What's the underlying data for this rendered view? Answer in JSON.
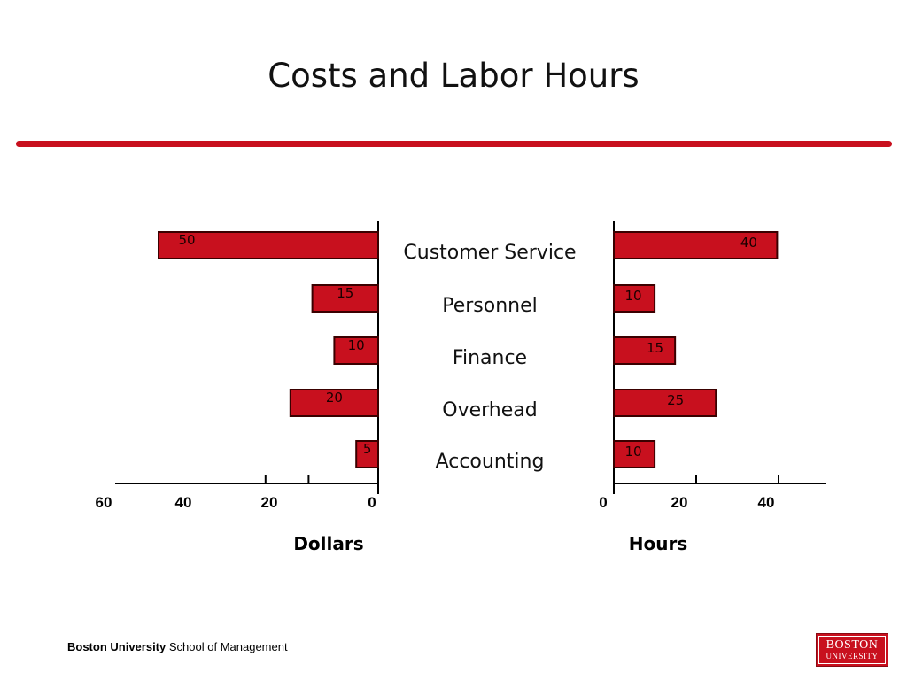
{
  "slide": {
    "title": "Costs and Labor Hours"
  },
  "footer": {
    "institution": "Boston University",
    "school": "School of Management"
  },
  "logo": {
    "line1": "BOSTON",
    "line2": "UNIVERSITY"
  },
  "colors": {
    "accent": "#c8101e",
    "bar_fill": "#c8101e",
    "bar_stroke": "#3a0000"
  },
  "chart_data": {
    "type": "bar",
    "categories": [
      "Customer Service",
      "Personnel",
      "Finance",
      "Overhead",
      "Accounting"
    ],
    "series": [
      {
        "values": [
          50,
          15,
          10,
          20,
          5
        ],
        "direction": "left"
      },
      {
        "values": [
          40,
          10,
          15,
          25,
          10
        ],
        "direction": "right"
      }
    ],
    "left_axis": {
      "title": "Dollars",
      "ticks": [
        "60",
        "40",
        "20",
        "0"
      ],
      "range": [
        0,
        60
      ],
      "reversed": true
    },
    "right_axis": {
      "title": "Hours",
      "ticks": [
        "0",
        "20",
        "40"
      ],
      "range": [
        0,
        50
      ]
    },
    "grid": false,
    "legend": "none"
  }
}
